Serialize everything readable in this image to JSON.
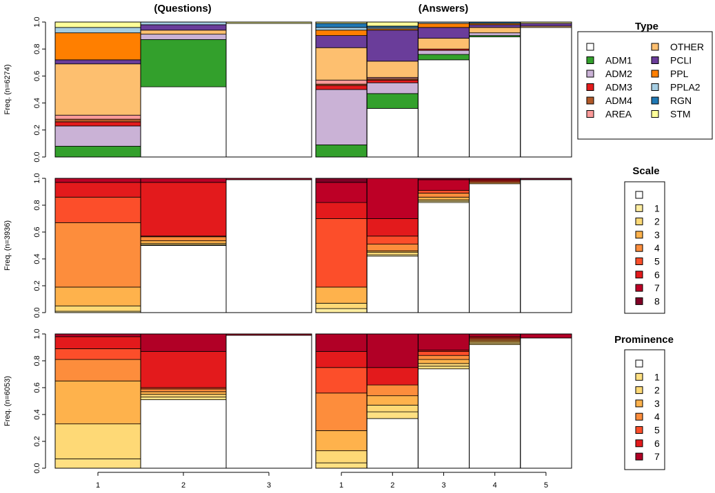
{
  "chart_data": {
    "type": "bar",
    "stacked": true,
    "normalized": true,
    "panel_titles": [
      "(Questions)",
      "(Answers)"
    ],
    "panel_categories": [
      [
        "1",
        "2",
        "3"
      ],
      [
        "1",
        "2",
        "3",
        "4",
        "5"
      ]
    ],
    "ylim": [
      0,
      1
    ],
    "yticks": [
      "0.0",
      "0.2",
      "0.4",
      "0.6",
      "0.8",
      "1.0"
    ],
    "rows": [
      {
        "legend_title": "Type",
        "ylabel": "Freq. (n=6274)",
        "levels": [
          "",
          "ADM1",
          "ADM2",
          "ADM3",
          "ADM4",
          "AREA",
          "OTHER",
          "PCLI",
          "PPL",
          "PPLA2",
          "RGN",
          "STM"
        ],
        "colors": [
          "#ffffff",
          "#33a02c",
          "#cab2d6",
          "#e31a1c",
          "#b15928",
          "#fb9a99",
          "#fdbf6f",
          "#6a3d9a",
          "#ff7f00",
          "#a6cee3",
          "#1f78b4",
          "#ffff99"
        ],
        "questions": [
          {
            "category": "1",
            "width": 0.333,
            "values": [
              0.0,
              0.08,
              0.15,
              0.03,
              0.02,
              0.03,
              0.38,
              0.03,
              0.2,
              0.04,
              0.0,
              0.04
            ]
          },
          {
            "category": "2",
            "width": 0.333,
            "values": [
              0.52,
              0.35,
              0.04,
              0.0,
              0.0,
              0.0,
              0.03,
              0.04,
              0.0,
              0.02,
              0.0,
              0.0
            ]
          },
          {
            "category": "3",
            "width": 0.333,
            "values": [
              0.99,
              0.0,
              0.0,
              0.0,
              0.0,
              0.0,
              0.0,
              0.0,
              0.0,
              0.0,
              0.0,
              0.01
            ]
          }
        ],
        "answers": [
          {
            "category": "1",
            "width": 0.2,
            "values": [
              0.0,
              0.09,
              0.41,
              0.03,
              0.01,
              0.03,
              0.24,
              0.09,
              0.04,
              0.02,
              0.03,
              0.01
            ]
          },
          {
            "category": "2",
            "width": 0.2,
            "values": [
              0.36,
              0.11,
              0.08,
              0.02,
              0.01,
              0.01,
              0.12,
              0.23,
              0.01,
              0.01,
              0.01,
              0.03
            ]
          },
          {
            "category": "3",
            "width": 0.2,
            "values": [
              0.72,
              0.04,
              0.03,
              0.01,
              0.0,
              0.0,
              0.08,
              0.08,
              0.03,
              0.01,
              0.0,
              0.0
            ]
          },
          {
            "category": "4",
            "width": 0.2,
            "values": [
              0.89,
              0.01,
              0.02,
              0.0,
              0.0,
              0.0,
              0.04,
              0.02,
              0.01,
              0.0,
              0.01,
              0.0
            ]
          },
          {
            "category": "5",
            "width": 0.2,
            "values": [
              0.96,
              0.0,
              0.0,
              0.0,
              0.0,
              0.0,
              0.01,
              0.02,
              0.0,
              0.0,
              0.0,
              0.01
            ]
          }
        ]
      },
      {
        "legend_title": "Scale",
        "ylabel": "Freq. (n=3936)",
        "levels": [
          "",
          "1",
          "2",
          "3",
          "4",
          "5",
          "6",
          "7",
          "8"
        ],
        "colors": [
          "#ffffff",
          "#ffeda0",
          "#fed976",
          "#feb24c",
          "#fd8d3c",
          "#fc4e2a",
          "#e31a1c",
          "#bd0026",
          "#800026"
        ],
        "questions": [
          {
            "category": "1",
            "width": 0.333,
            "values": [
              0.0,
              0.01,
              0.04,
              0.14,
              0.48,
              0.19,
              0.11,
              0.03,
              0.0
            ]
          },
          {
            "category": "2",
            "width": 0.333,
            "values": [
              0.5,
              0.005,
              0.01,
              0.02,
              0.03,
              0.005,
              0.4,
              0.03,
              0.0
            ]
          },
          {
            "category": "3",
            "width": 0.333,
            "values": [
              0.99,
              0.0,
              0.0,
              0.0,
              0.0,
              0.0,
              0.0,
              0.01,
              0.0
            ]
          }
        ],
        "answers": [
          {
            "category": "1",
            "width": 0.2,
            "values": [
              0.0,
              0.03,
              0.04,
              0.12,
              0.0,
              0.51,
              0.12,
              0.15,
              0.03
            ]
          },
          {
            "category": "2",
            "width": 0.2,
            "values": [
              0.42,
              0.01,
              0.02,
              0.01,
              0.05,
              0.06,
              0.13,
              0.3,
              0.0
            ]
          },
          {
            "category": "3",
            "width": 0.2,
            "values": [
              0.82,
              0.01,
              0.01,
              0.02,
              0.03,
              0.02,
              0.0,
              0.08,
              0.01
            ]
          },
          {
            "category": "4",
            "width": 0.2,
            "values": [
              0.96,
              0.0,
              0.0,
              0.01,
              0.0,
              0.01,
              0.01,
              0.01,
              0.0
            ]
          },
          {
            "category": "5",
            "width": 0.2,
            "values": [
              0.99,
              0.0,
              0.0,
              0.0,
              0.0,
              0.0,
              0.0,
              0.0,
              0.01
            ]
          }
        ]
      },
      {
        "legend_title": "Prominence",
        "ylabel": "Freq. (n=6053)",
        "levels": [
          "",
          "1",
          "2",
          "3",
          "4",
          "5",
          "6",
          "7"
        ],
        "colors": [
          "#ffffff",
          "#ffe082",
          "#fed976",
          "#feb24c",
          "#fd8d3c",
          "#fc4e2a",
          "#e31a1c",
          "#b10026"
        ],
        "questions": [
          {
            "category": "1",
            "width": 0.333,
            "values": [
              0.0,
              0.07,
              0.26,
              0.32,
              0.16,
              0.08,
              0.09,
              0.02
            ]
          },
          {
            "category": "2",
            "width": 0.333,
            "values": [
              0.51,
              0.02,
              0.02,
              0.02,
              0.02,
              0.01,
              0.27,
              0.13
            ]
          },
          {
            "category": "3",
            "width": 0.333,
            "values": [
              0.99,
              0.0,
              0.0,
              0.0,
              0.0,
              0.0,
              0.0,
              0.01
            ]
          }
        ],
        "answers": [
          {
            "category": "1",
            "width": 0.2,
            "values": [
              0.0,
              0.04,
              0.09,
              0.15,
              0.28,
              0.19,
              0.12,
              0.13
            ]
          },
          {
            "category": "2",
            "width": 0.2,
            "values": [
              0.37,
              0.05,
              0.05,
              0.07,
              0.08,
              0.0,
              0.13,
              0.25
            ]
          },
          {
            "category": "3",
            "width": 0.2,
            "values": [
              0.74,
              0.02,
              0.02,
              0.03,
              0.03,
              0.03,
              0.01,
              0.12
            ]
          },
          {
            "category": "4",
            "width": 0.2,
            "values": [
              0.92,
              0.01,
              0.01,
              0.01,
              0.01,
              0.01,
              0.01,
              0.02
            ]
          },
          {
            "category": "5",
            "width": 0.2,
            "values": [
              0.97,
              0.0,
              0.0,
              0.0,
              0.0,
              0.0,
              0.0,
              0.03
            ]
          }
        ]
      }
    ]
  }
}
